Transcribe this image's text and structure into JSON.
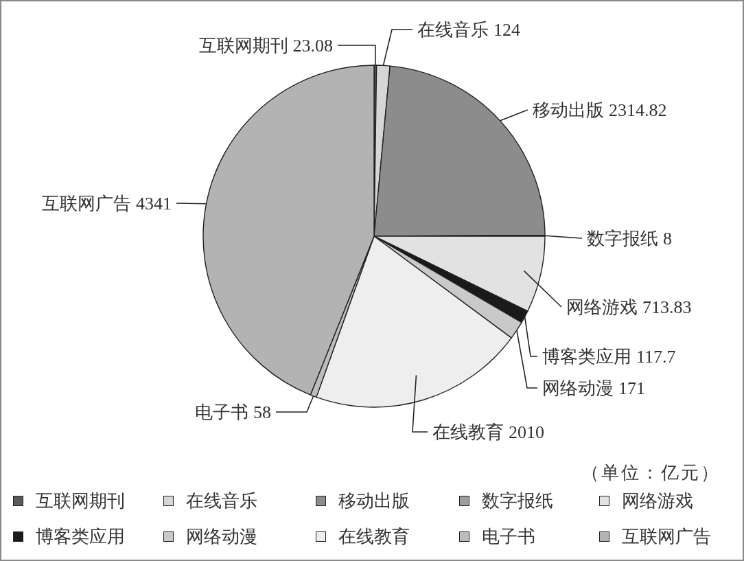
{
  "chart_data": {
    "type": "pie",
    "categories": [
      "互联网期刊",
      "在线音乐",
      "移动出版",
      "数字报纸",
      "网络游戏",
      "博客类应用",
      "网络动漫",
      "在线教育",
      "电子书",
      "互联网广告"
    ],
    "values": [
      23.08,
      124,
      2314.82,
      8,
      713.83,
      117.7,
      171,
      2010,
      58,
      4341
    ],
    "colors": [
      "#595959",
      "#d6d6d6",
      "#8c8c8c",
      "#9e9e9e",
      "#e2e2e2",
      "#1a1a1a",
      "#c9c9c9",
      "#eeeeee",
      "#bdbdbd",
      "#b3b3b3"
    ],
    "data_labels": true,
    "legend": "bottom",
    "annotations": [
      "（单位：亿元）"
    ]
  }
}
